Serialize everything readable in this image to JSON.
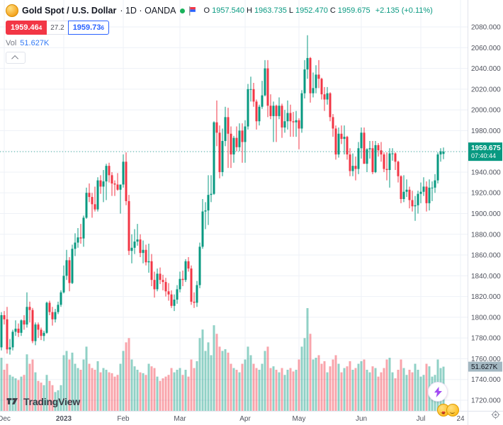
{
  "header": {
    "symbol_title": "Gold Spot / U.S. Dollar",
    "symbol_meta": "· 1D · OANDA",
    "ohlc": {
      "o_label": "O",
      "o": "1957.540",
      "h_label": "H",
      "h": "1963.735",
      "l_label": "L",
      "l": "1952.470",
      "c_label": "C",
      "c": "1959.675",
      "change_text": "+2.135 (+0.11%)"
    },
    "sell_main": "1959.46",
    "sell_sup": "4",
    "spread": "27.2",
    "buy_main": "1959.73",
    "buy_sup": "6",
    "vol_label": "Vol",
    "vol_value": "51.627K"
  },
  "logo": {
    "text": "TradingView"
  },
  "colors": {
    "up": "#089981",
    "down": "#F23645",
    "vol_up": "rgba(8,153,129,0.45)",
    "vol_down": "rgba(242,54,69,0.45)",
    "grid": "#eef1f7",
    "axis_text": "#50535E",
    "axis_border": "#e0e3eb",
    "price_label_bg": "#089981",
    "vol_label_bg": "#a3b8c2",
    "buy": "#2962FF",
    "sell": "#F23645"
  },
  "chart_data": {
    "type": "candlestick_with_volume",
    "title": "Gold Spot / U.S. Dollar · 1D · OANDA",
    "symbol": "XAUUSD",
    "interval": "1D",
    "exchange": "OANDA",
    "current_bar": {
      "open": 1957.54,
      "high": 1963.735,
      "low": 1952.47,
      "close": 1959.675,
      "change": 2.135,
      "change_pct": 0.11
    },
    "last_price": 1959.675,
    "countdown": "07:40:44",
    "current_volume_label": "51.627K",
    "current_volume_k": 51.627,
    "y_axis": {
      "min": 1720,
      "max": 2080,
      "step": 20,
      "decimals": 3,
      "grid": true
    },
    "x_ticks": [
      {
        "i": 1,
        "label": "Dec"
      },
      {
        "i": 22,
        "label": "2023",
        "bold": true
      },
      {
        "i": 43,
        "label": "Feb"
      },
      {
        "i": 63,
        "label": "Mar"
      },
      {
        "i": 86,
        "label": "Apr"
      },
      {
        "i": 105,
        "label": "May"
      },
      {
        "i": 127,
        "label": "Jun"
      },
      {
        "i": 148,
        "label": "Jul"
      },
      {
        "i": 162,
        "label": "24"
      }
    ],
    "candles_format": [
      "open",
      "high",
      "low",
      "close",
      "volume_k"
    ],
    "candles": [
      [
        1771,
        1805,
        1768,
        1802,
        62
      ],
      [
        1802,
        1806,
        1793,
        1798,
        48
      ],
      [
        1798,
        1810,
        1765,
        1769,
        55
      ],
      [
        1769,
        1779,
        1764,
        1771,
        42
      ],
      [
        1771,
        1788,
        1768,
        1786,
        40
      ],
      [
        1786,
        1797,
        1782,
        1789,
        38
      ],
      [
        1789,
        1794,
        1781,
        1785,
        36
      ],
      [
        1785,
        1798,
        1782,
        1797,
        40
      ],
      [
        1797,
        1802,
        1788,
        1793,
        42
      ],
      [
        1793,
        1824,
        1790,
        1810,
        66
      ],
      [
        1810,
        1815,
        1795,
        1807,
        55
      ],
      [
        1807,
        1809,
        1775,
        1777,
        60
      ],
      [
        1777,
        1795,
        1773,
        1793,
        45
      ],
      [
        1793,
        1795,
        1780,
        1788,
        35
      ],
      [
        1788,
        1790,
        1778,
        1782,
        33
      ],
      [
        1782,
        1787,
        1777,
        1785,
        30
      ],
      [
        1785,
        1815,
        1784,
        1814,
        42
      ],
      [
        1814,
        1816,
        1802,
        1805,
        35
      ],
      [
        1805,
        1810,
        1792,
        1798,
        30
      ],
      [
        1798,
        1808,
        1795,
        1805,
        22
      ],
      [
        1805,
        1815,
        1803,
        1812,
        24
      ],
      [
        1812,
        1826,
        1810,
        1824,
        30
      ],
      [
        1824,
        1850,
        1823,
        1840,
        65
      ],
      [
        1840,
        1865,
        1836,
        1855,
        70
      ],
      [
        1855,
        1858,
        1825,
        1833,
        60
      ],
      [
        1833,
        1870,
        1832,
        1866,
        68
      ],
      [
        1866,
        1881,
        1859,
        1872,
        55
      ],
      [
        1872,
        1886,
        1867,
        1877,
        50
      ],
      [
        1877,
        1890,
        1871,
        1876,
        48
      ],
      [
        1876,
        1898,
        1868,
        1896,
        60
      ],
      [
        1896,
        1925,
        1895,
        1920,
        75
      ],
      [
        1920,
        1929,
        1911,
        1916,
        55
      ],
      [
        1916,
        1920,
        1896,
        1909,
        50
      ],
      [
        1909,
        1926,
        1902,
        1904,
        48
      ],
      [
        1904,
        1935,
        1902,
        1932,
        58
      ],
      [
        1932,
        1937,
        1919,
        1926,
        45
      ],
      [
        1926,
        1942,
        1911,
        1931,
        50
      ],
      [
        1931,
        1948,
        1913,
        1946,
        48
      ],
      [
        1946,
        1949,
        1930,
        1937,
        45
      ],
      [
        1937,
        1940,
        1917,
        1929,
        44
      ],
      [
        1929,
        1932,
        1917,
        1928,
        40
      ],
      [
        1928,
        1939,
        1922,
        1923,
        42
      ],
      [
        1923,
        1928,
        1900,
        1928,
        55
      ],
      [
        1928,
        1957,
        1925,
        1950,
        70
      ],
      [
        1950,
        1959,
        1908,
        1912,
        80
      ],
      [
        1912,
        1918,
        1860,
        1864,
        85
      ],
      [
        1864,
        1880,
        1852,
        1867,
        60
      ],
      [
        1867,
        1885,
        1861,
        1873,
        52
      ],
      [
        1873,
        1890,
        1869,
        1875,
        48
      ],
      [
        1875,
        1880,
        1858,
        1862,
        45
      ],
      [
        1862,
        1874,
        1852,
        1865,
        44
      ],
      [
        1865,
        1870,
        1850,
        1853,
        42
      ],
      [
        1853,
        1871,
        1843,
        1854,
        55
      ],
      [
        1854,
        1861,
        1830,
        1836,
        52
      ],
      [
        1836,
        1844,
        1819,
        1827,
        50
      ],
      [
        1827,
        1847,
        1825,
        1842,
        40
      ],
      [
        1842,
        1848,
        1832,
        1836,
        35
      ],
      [
        1836,
        1841,
        1826,
        1834,
        38
      ],
      [
        1834,
        1838,
        1820,
        1825,
        40
      ],
      [
        1825,
        1833,
        1816,
        1822,
        42
      ],
      [
        1822,
        1826,
        1809,
        1811,
        50
      ],
      [
        1811,
        1822,
        1806,
        1817,
        45
      ],
      [
        1817,
        1831,
        1813,
        1827,
        48
      ],
      [
        1827,
        1844,
        1824,
        1837,
        50
      ],
      [
        1837,
        1845,
        1830,
        1836,
        42
      ],
      [
        1836,
        1856,
        1834,
        1854,
        48
      ],
      [
        1854,
        1858,
        1844,
        1847,
        40
      ],
      [
        1847,
        1850,
        1812,
        1815,
        60
      ],
      [
        1815,
        1824,
        1809,
        1814,
        50
      ],
      [
        1814,
        1835,
        1810,
        1831,
        58
      ],
      [
        1831,
        1872,
        1828,
        1868,
        85
      ],
      [
        1868,
        1914,
        1866,
        1902,
        95
      ],
      [
        1902,
        1911,
        1885,
        1903,
        70
      ],
      [
        1903,
        1937,
        1889,
        1918,
        80
      ],
      [
        1918,
        1937,
        1911,
        1919,
        65
      ],
      [
        1919,
        1989,
        1918,
        1988,
        100
      ],
      [
        1988,
        2009,
        1965,
        1978,
        90
      ],
      [
        1978,
        1985,
        1934,
        1940,
        75
      ],
      [
        1940,
        1982,
        1936,
        1970,
        70
      ],
      [
        1970,
        2003,
        1965,
        1993,
        72
      ],
      [
        1993,
        2002,
        1944,
        1977,
        68
      ],
      [
        1977,
        1984,
        1944,
        1957,
        55
      ],
      [
        1957,
        1975,
        1949,
        1973,
        50
      ],
      [
        1973,
        1984,
        1960,
        1964,
        48
      ],
      [
        1964,
        1987,
        1960,
        1980,
        45
      ],
      [
        1980,
        1987,
        1949,
        1969,
        55
      ],
      [
        1969,
        1990,
        1949,
        1984,
        60
      ],
      [
        1984,
        2025,
        1981,
        2020,
        75
      ],
      [
        2020,
        2032,
        2008,
        2020,
        65
      ],
      [
        2020,
        2026,
        2003,
        2008,
        55
      ],
      [
        2008,
        2010,
        1981,
        1989,
        50
      ],
      [
        1989,
        2005,
        1985,
        2003,
        48
      ],
      [
        2003,
        2028,
        2001,
        2014,
        55
      ],
      [
        2014,
        2048,
        2013,
        2040,
        70
      ],
      [
        2040,
        2048,
        1993,
        2004,
        75
      ],
      [
        2004,
        2015,
        1991,
        1994,
        50
      ],
      [
        1994,
        2008,
        1969,
        2004,
        52
      ],
      [
        2004,
        2005,
        1969,
        1994,
        48
      ],
      [
        1994,
        2012,
        1991,
        2004,
        45
      ],
      [
        2004,
        2006,
        1973,
        1983,
        50
      ],
      [
        1983,
        2000,
        1978,
        1989,
        42
      ],
      [
        1989,
        2009,
        1981,
        1997,
        48
      ],
      [
        1997,
        2005,
        1974,
        1989,
        50
      ],
      [
        1989,
        1998,
        1974,
        1988,
        46
      ],
      [
        1988,
        1999,
        1974,
        1990,
        48
      ],
      [
        1990,
        1992,
        1962,
        1982,
        60
      ],
      [
        1982,
        2019,
        1978,
        2016,
        75
      ],
      [
        2016,
        2048,
        2011,
        2039,
        85
      ],
      [
        2039,
        2072,
        2030,
        2050,
        120
      ],
      [
        2050,
        2051,
        2007,
        2016,
        90
      ],
      [
        2016,
        2036,
        2012,
        2021,
        60
      ],
      [
        2021,
        2043,
        2016,
        2034,
        62
      ],
      [
        2034,
        2048,
        2021,
        2030,
        65
      ],
      [
        2030,
        2031,
        2010,
        2015,
        55
      ],
      [
        2015,
        2022,
        1999,
        2010,
        58
      ],
      [
        2010,
        2022,
        2005,
        2016,
        45
      ],
      [
        2016,
        2017,
        1989,
        1993,
        52
      ],
      [
        1993,
        1996,
        1974,
        1982,
        60
      ],
      [
        1982,
        1985,
        1952,
        1957,
        65
      ],
      [
        1957,
        1983,
        1954,
        1977,
        55
      ],
      [
        1977,
        1985,
        1967,
        1972,
        45
      ],
      [
        1972,
        1985,
        1957,
        1974,
        50
      ],
      [
        1974,
        1975,
        1952,
        1957,
        52
      ],
      [
        1957,
        1963,
        1936,
        1941,
        58
      ],
      [
        1941,
        1958,
        1936,
        1946,
        48
      ],
      [
        1946,
        1955,
        1932,
        1943,
        50
      ],
      [
        1943,
        1969,
        1938,
        1963,
        55
      ],
      [
        1963,
        1983,
        1953,
        1978,
        58
      ],
      [
        1978,
        1983,
        1948,
        1948,
        60
      ],
      [
        1948,
        1963,
        1940,
        1962,
        48
      ],
      [
        1962,
        1970,
        1953,
        1963,
        45
      ],
      [
        1963,
        1970,
        1938,
        1940,
        52
      ],
      [
        1940,
        1970,
        1939,
        1966,
        50
      ],
      [
        1966,
        1968,
        1955,
        1961,
        40
      ],
      [
        1961,
        1969,
        1950,
        1957,
        45
      ],
      [
        1957,
        1959,
        1940,
        1943,
        50
      ],
      [
        1943,
        1959,
        1932,
        1942,
        60
      ],
      [
        1942,
        1963,
        1925,
        1958,
        62
      ],
      [
        1958,
        1963,
        1951,
        1958,
        45
      ],
      [
        1958,
        1959,
        1942,
        1950,
        38
      ],
      [
        1950,
        1951,
        1930,
        1936,
        48
      ],
      [
        1936,
        1937,
        1910,
        1914,
        60
      ],
      [
        1914,
        1937,
        1911,
        1921,
        50
      ],
      [
        1921,
        1933,
        1916,
        1923,
        42
      ],
      [
        1923,
        1926,
        1905,
        1913,
        48
      ],
      [
        1913,
        1922,
        1902,
        1907,
        45
      ],
      [
        1907,
        1917,
        1893,
        1908,
        55
      ],
      [
        1908,
        1922,
        1900,
        1919,
        48
      ],
      [
        1919,
        1930,
        1910,
        1921,
        40
      ],
      [
        1921,
        1935,
        1917,
        1926,
        42
      ],
      [
        1926,
        1931,
        1902,
        1910,
        55
      ],
      [
        1910,
        1933,
        1903,
        1925,
        52
      ],
      [
        1925,
        1931,
        1912,
        1925,
        40
      ],
      [
        1925,
        1938,
        1920,
        1932,
        42
      ],
      [
        1932,
        1959,
        1929,
        1957,
        60
      ],
      [
        1957,
        1963,
        1950,
        1960,
        50
      ],
      [
        1957.54,
        1963.735,
        1952.47,
        1959.675,
        51.627
      ]
    ]
  }
}
